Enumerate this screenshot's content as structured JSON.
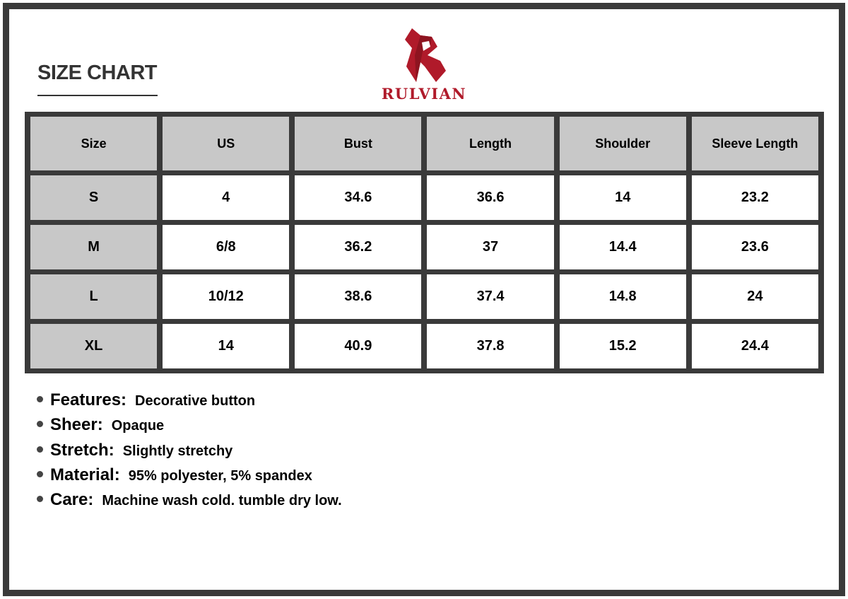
{
  "title": "SIZE CHART",
  "brand": {
    "name": "RULVIAN",
    "color": "#b01a2a"
  },
  "table": {
    "headers": [
      "Size",
      "US",
      "Bust",
      "Length",
      "Shoulder",
      "Sleeve Length"
    ],
    "rows": [
      [
        "S",
        "4",
        "34.6",
        "36.6",
        "14",
        "23.2"
      ],
      [
        "M",
        "6/8",
        "36.2",
        "37",
        "14.4",
        "23.6"
      ],
      [
        "L",
        "10/12",
        "38.6",
        "37.4",
        "14.8",
        "24"
      ],
      [
        "XL",
        "14",
        "40.9",
        "37.8",
        "15.2",
        "24.4"
      ]
    ]
  },
  "features": [
    {
      "label": "Features:",
      "value": "Decorative button"
    },
    {
      "label": "Sheer:",
      "value": "Opaque"
    },
    {
      "label": "Stretch:",
      "value": "Slightly stretchy"
    },
    {
      "label": "Material:",
      "value": "95% polyester, 5% spandex"
    },
    {
      "label": "Care:",
      "value": "Machine wash cold. tumble dry low."
    }
  ]
}
